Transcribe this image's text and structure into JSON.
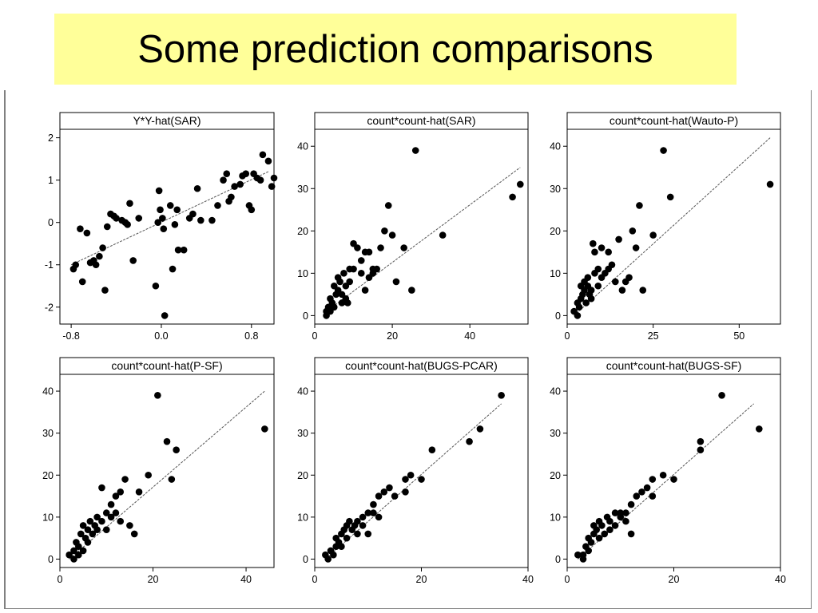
{
  "slide": {
    "title": "Some prediction comparisons"
  },
  "colors": {
    "title_background": "#ffff99",
    "points": "#000000",
    "fit_line": "#555555"
  },
  "chart_data": [
    {
      "type": "scatter",
      "title": "Y*Y-hat(SAR)",
      "xlabel": "",
      "ylabel": "",
      "xlim": [
        -0.9,
        1.0
      ],
      "ylim": [
        -2.4,
        2.2
      ],
      "xticks": [
        -0.8,
        0.0,
        0.8
      ],
      "xtick_labels": [
        "-0.8",
        "0.0",
        "0.8"
      ],
      "yticks": [
        -2,
        -1,
        0,
        1,
        2
      ],
      "ytick_labels": [
        "-2",
        "-1",
        "0",
        "1",
        "2"
      ],
      "fit_line": [
        [
          -0.8,
          -1.0
        ],
        [
          0.95,
          1.2
        ]
      ],
      "points": [
        [
          -0.78,
          -1.1
        ],
        [
          -0.76,
          -1.0
        ],
        [
          -0.72,
          -0.15
        ],
        [
          -0.7,
          -1.4
        ],
        [
          -0.66,
          -0.25
        ],
        [
          -0.63,
          -0.95
        ],
        [
          -0.6,
          -0.9
        ],
        [
          -0.58,
          -1.0
        ],
        [
          -0.55,
          -0.8
        ],
        [
          -0.52,
          -0.6
        ],
        [
          -0.5,
          -1.6
        ],
        [
          -0.48,
          -0.1
        ],
        [
          -0.45,
          0.2
        ],
        [
          -0.42,
          0.15
        ],
        [
          -0.4,
          0.1
        ],
        [
          -0.35,
          0.05
        ],
        [
          -0.32,
          0.0
        ],
        [
          -0.3,
          -0.05
        ],
        [
          -0.28,
          0.45
        ],
        [
          -0.25,
          -0.9
        ],
        [
          -0.2,
          0.1
        ],
        [
          -0.05,
          -1.5
        ],
        [
          -0.03,
          0.0
        ],
        [
          -0.02,
          0.75
        ],
        [
          -0.01,
          0.3
        ],
        [
          0.01,
          0.1
        ],
        [
          0.02,
          -0.15
        ],
        [
          0.03,
          -2.2
        ],
        [
          0.08,
          0.4
        ],
        [
          0.1,
          -1.1
        ],
        [
          0.12,
          -0.05
        ],
        [
          0.14,
          0.3
        ],
        [
          0.15,
          -0.65
        ],
        [
          0.2,
          -0.65
        ],
        [
          0.25,
          0.1
        ],
        [
          0.28,
          0.2
        ],
        [
          0.32,
          0.8
        ],
        [
          0.35,
          0.05
        ],
        [
          0.45,
          0.05
        ],
        [
          0.5,
          0.4
        ],
        [
          0.55,
          1.0
        ],
        [
          0.58,
          1.15
        ],
        [
          0.6,
          0.5
        ],
        [
          0.62,
          0.6
        ],
        [
          0.65,
          0.85
        ],
        [
          0.7,
          0.9
        ],
        [
          0.72,
          1.1
        ],
        [
          0.75,
          1.15
        ],
        [
          0.78,
          0.4
        ],
        [
          0.8,
          0.3
        ],
        [
          0.82,
          1.15
        ],
        [
          0.85,
          1.05
        ],
        [
          0.88,
          1.0
        ],
        [
          0.9,
          1.6
        ],
        [
          0.95,
          1.45
        ],
        [
          0.98,
          0.85
        ],
        [
          1.0,
          1.05
        ]
      ]
    },
    {
      "type": "scatter",
      "title": "count*count-hat(SAR)",
      "xlabel": "",
      "ylabel": "",
      "xlim": [
        0,
        55
      ],
      "ylim": [
        -2,
        44
      ],
      "xticks": [
        0,
        20,
        40
      ],
      "xtick_labels": [
        "0",
        "20",
        "40"
      ],
      "yticks": [
        0,
        10,
        20,
        30,
        40
      ],
      "ytick_labels": [
        "0",
        "10",
        "20",
        "30",
        "40"
      ],
      "fit_line": [
        [
          3,
          1
        ],
        [
          53,
          35
        ]
      ],
      "points": [
        [
          3,
          0
        ],
        [
          3,
          1
        ],
        [
          3.5,
          2
        ],
        [
          4,
          1
        ],
        [
          4,
          4
        ],
        [
          4.5,
          3
        ],
        [
          5,
          7
        ],
        [
          5,
          2
        ],
        [
          5.5,
          5
        ],
        [
          6,
          9
        ],
        [
          6,
          6
        ],
        [
          6.5,
          8
        ],
        [
          7,
          5
        ],
        [
          7,
          3
        ],
        [
          7.5,
          10
        ],
        [
          8,
          7
        ],
        [
          8,
          4
        ],
        [
          8.5,
          3
        ],
        [
          9,
          11
        ],
        [
          9,
          8
        ],
        [
          10,
          11
        ],
        [
          10,
          17
        ],
        [
          11,
          16
        ],
        [
          12,
          10
        ],
        [
          12,
          13
        ],
        [
          13,
          6
        ],
        [
          13,
          15
        ],
        [
          14,
          15
        ],
        [
          14,
          9
        ],
        [
          15,
          10
        ],
        [
          15,
          11
        ],
        [
          16,
          11
        ],
        [
          17,
          16
        ],
        [
          18,
          20
        ],
        [
          19,
          26
        ],
        [
          20,
          19
        ],
        [
          21,
          8
        ],
        [
          23,
          16
        ],
        [
          25,
          6
        ],
        [
          26,
          39
        ],
        [
          33,
          19
        ],
        [
          51,
          28
        ],
        [
          53,
          31
        ]
      ]
    },
    {
      "type": "scatter",
      "title": "count*count-hat(Wauto-P)",
      "xlabel": "",
      "ylabel": "",
      "xlim": [
        0,
        62
      ],
      "ylim": [
        -2,
        44
      ],
      "xticks": [
        0,
        25,
        50
      ],
      "xtick_labels": [
        "0",
        "25",
        "50"
      ],
      "yticks": [
        0,
        10,
        20,
        30,
        40
      ],
      "ytick_labels": [
        "0",
        "10",
        "20",
        "30",
        "40"
      ],
      "fit_line": [
        [
          2,
          0
        ],
        [
          59,
          42
        ]
      ],
      "points": [
        [
          2,
          1
        ],
        [
          3,
          0
        ],
        [
          3,
          3
        ],
        [
          3.5,
          2
        ],
        [
          4,
          4
        ],
        [
          4,
          7
        ],
        [
          4.5,
          5
        ],
        [
          5,
          8
        ],
        [
          5,
          6
        ],
        [
          5.5,
          3
        ],
        [
          6,
          7
        ],
        [
          6,
          9
        ],
        [
          6.5,
          5
        ],
        [
          7,
          6
        ],
        [
          7,
          4
        ],
        [
          7.5,
          17
        ],
        [
          8,
          15
        ],
        [
          8,
          10
        ],
        [
          9,
          11
        ],
        [
          9,
          7
        ],
        [
          10,
          16
        ],
        [
          10,
          9
        ],
        [
          11,
          10
        ],
        [
          12,
          11
        ],
        [
          12,
          15
        ],
        [
          13,
          12
        ],
        [
          14,
          8
        ],
        [
          15,
          18
        ],
        [
          16,
          6
        ],
        [
          17,
          8
        ],
        [
          18,
          9
        ],
        [
          19,
          20
        ],
        [
          20,
          16
        ],
        [
          21,
          26
        ],
        [
          22,
          6
        ],
        [
          25,
          19
        ],
        [
          28,
          39
        ],
        [
          30,
          28
        ],
        [
          59,
          31
        ]
      ]
    },
    {
      "type": "scatter",
      "title": "count*count-hat(P-SF)",
      "xlabel": "",
      "ylabel": "",
      "xlim": [
        0,
        46
      ],
      "ylim": [
        -2,
        44
      ],
      "xticks": [
        0,
        20,
        40
      ],
      "xtick_labels": [
        "0",
        "20",
        "40"
      ],
      "yticks": [
        0,
        10,
        20,
        30,
        40
      ],
      "ytick_labels": [
        "0",
        "10",
        "20",
        "30",
        "40"
      ],
      "fit_line": [
        [
          2,
          0
        ],
        [
          44,
          40
        ]
      ],
      "points": [
        [
          2,
          1
        ],
        [
          3,
          0
        ],
        [
          3,
          2
        ],
        [
          3.5,
          4
        ],
        [
          4,
          1
        ],
        [
          4,
          3
        ],
        [
          4.5,
          6
        ],
        [
          5,
          8
        ],
        [
          5,
          2
        ],
        [
          5.5,
          5
        ],
        [
          6,
          7
        ],
        [
          6,
          4
        ],
        [
          6.5,
          9
        ],
        [
          7,
          6
        ],
        [
          7.5,
          8
        ],
        [
          8,
          7
        ],
        [
          8,
          10
        ],
        [
          9,
          9
        ],
        [
          9,
          17
        ],
        [
          10,
          11
        ],
        [
          10,
          7
        ],
        [
          11,
          10
        ],
        [
          11,
          13
        ],
        [
          12,
          11
        ],
        [
          12,
          15
        ],
        [
          13,
          9
        ],
        [
          13,
          16
        ],
        [
          14,
          19
        ],
        [
          15,
          8
        ],
        [
          16,
          6
        ],
        [
          17,
          16
        ],
        [
          19,
          20
        ],
        [
          21,
          39
        ],
        [
          23,
          28
        ],
        [
          24,
          19
        ],
        [
          25,
          26
        ],
        [
          44,
          31
        ]
      ]
    },
    {
      "type": "scatter",
      "title": "count*count-hat(BUGS-PCAR)",
      "xlabel": "",
      "ylabel": "",
      "xlim": [
        0,
        40
      ],
      "ylim": [
        -2,
        44
      ],
      "xticks": [
        0,
        20,
        40
      ],
      "xtick_labels": [
        "0",
        "20",
        "40"
      ],
      "yticks": [
        0,
        10,
        20,
        30,
        40
      ],
      "ytick_labels": [
        "0",
        "10",
        "20",
        "30",
        "40"
      ],
      "fit_line": [
        [
          2,
          0
        ],
        [
          35,
          37
        ]
      ],
      "points": [
        [
          2,
          1
        ],
        [
          2.5,
          0
        ],
        [
          3,
          2
        ],
        [
          3.5,
          1
        ],
        [
          4,
          3
        ],
        [
          4,
          5
        ],
        [
          4.5,
          4
        ],
        [
          5,
          6
        ],
        [
          5,
          3
        ],
        [
          5.5,
          7
        ],
        [
          6,
          8
        ],
        [
          6,
          5
        ],
        [
          6.5,
          9
        ],
        [
          7,
          7
        ],
        [
          7.5,
          8
        ],
        [
          8,
          6
        ],
        [
          8,
          9
        ],
        [
          9,
          10
        ],
        [
          9,
          8
        ],
        [
          10,
          11
        ],
        [
          10,
          6
        ],
        [
          11,
          11
        ],
        [
          11,
          13
        ],
        [
          12,
          10
        ],
        [
          12,
          15
        ],
        [
          13,
          16
        ],
        [
          14,
          17
        ],
        [
          15,
          15
        ],
        [
          17,
          16
        ],
        [
          17,
          19
        ],
        [
          18,
          20
        ],
        [
          20,
          19
        ],
        [
          22,
          26
        ],
        [
          29,
          28
        ],
        [
          31,
          31
        ],
        [
          35,
          39
        ]
      ]
    },
    {
      "type": "scatter",
      "title": "count*count-hat(BUGS-SF)",
      "xlabel": "",
      "ylabel": "",
      "xlim": [
        0,
        40
      ],
      "ylim": [
        -2,
        44
      ],
      "xticks": [
        0,
        20,
        40
      ],
      "xtick_labels": [
        "0",
        "20",
        "40"
      ],
      "yticks": [
        0,
        10,
        20,
        30,
        40
      ],
      "ytick_labels": [
        "0",
        "10",
        "20",
        "30",
        "40"
      ],
      "fit_line": [
        [
          2,
          0
        ],
        [
          35,
          37
        ]
      ],
      "points": [
        [
          2,
          1
        ],
        [
          3,
          0
        ],
        [
          3,
          1
        ],
        [
          3.5,
          3
        ],
        [
          4,
          2
        ],
        [
          4,
          5
        ],
        [
          4.5,
          4
        ],
        [
          5,
          8
        ],
        [
          5,
          6
        ],
        [
          5.5,
          7
        ],
        [
          6,
          9
        ],
        [
          6,
          5
        ],
        [
          6.5,
          8
        ],
        [
          7,
          6
        ],
        [
          7.5,
          10
        ],
        [
          8,
          9
        ],
        [
          8,
          7
        ],
        [
          9,
          11
        ],
        [
          9,
          8
        ],
        [
          10,
          10
        ],
        [
          10,
          11
        ],
        [
          11,
          11
        ],
        [
          11,
          9
        ],
        [
          12,
          13
        ],
        [
          12,
          6
        ],
        [
          13,
          15
        ],
        [
          14,
          16
        ],
        [
          15,
          17
        ],
        [
          16,
          19
        ],
        [
          16,
          15
        ],
        [
          18,
          20
        ],
        [
          20,
          19
        ],
        [
          25,
          26
        ],
        [
          25,
          28
        ],
        [
          29,
          39
        ],
        [
          36,
          31
        ]
      ]
    }
  ]
}
